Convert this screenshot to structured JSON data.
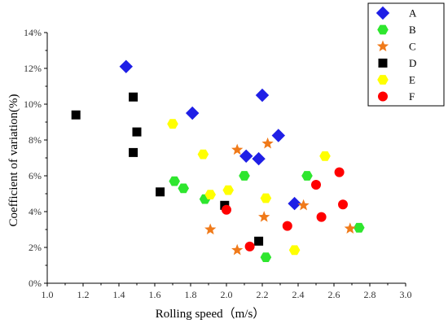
{
  "chart_data": {
    "type": "scatter",
    "xlabel": "Rolling speed（m/s）",
    "ylabel": "Coefficient of variation(%)",
    "xlim": [
      1.0,
      3.0
    ],
    "ylim": [
      0,
      14
    ],
    "x_ticks": [
      "1.0",
      "1.2",
      "1.4",
      "1.6",
      "1.8",
      "2.0",
      "2.2",
      "2.4",
      "2.6",
      "2.8",
      "3.0"
    ],
    "y_ticks": [
      "0%",
      "2%",
      "4%",
      "6%",
      "8%",
      "10%",
      "12%",
      "14%"
    ],
    "grid": false,
    "legend_position": "top-right",
    "series": [
      {
        "name": "A",
        "marker": "diamond",
        "color": "#1f1fe6",
        "points": [
          [
            1.44,
            12.1
          ],
          [
            1.81,
            9.5
          ],
          [
            2.2,
            10.5
          ],
          [
            2.11,
            7.1
          ],
          [
            2.18,
            6.95
          ],
          [
            2.29,
            8.25
          ],
          [
            2.38,
            4.45
          ]
        ]
      },
      {
        "name": "B",
        "marker": "hexagon",
        "color": "#2ee62e",
        "points": [
          [
            1.71,
            5.7
          ],
          [
            1.76,
            5.3
          ],
          [
            1.88,
            4.7
          ],
          [
            2.1,
            6.0
          ],
          [
            2.22,
            1.45
          ],
          [
            2.45,
            6.0
          ],
          [
            2.74,
            3.1
          ]
        ]
      },
      {
        "name": "C",
        "marker": "star",
        "color": "#f07a1a",
        "points": [
          [
            1.91,
            3.0
          ],
          [
            2.06,
            1.85
          ],
          [
            2.06,
            7.45
          ],
          [
            2.23,
            7.8
          ],
          [
            2.21,
            3.7
          ],
          [
            2.43,
            4.35
          ],
          [
            2.69,
            3.05
          ]
        ]
      },
      {
        "name": "D",
        "marker": "square",
        "color": "#000000",
        "points": [
          [
            1.16,
            9.4
          ],
          [
            1.48,
            10.4
          ],
          [
            1.5,
            8.45
          ],
          [
            1.48,
            7.3
          ],
          [
            1.63,
            5.1
          ],
          [
            1.99,
            4.35
          ],
          [
            2.18,
            2.35
          ]
        ]
      },
      {
        "name": "E",
        "marker": "hexagon",
        "color": "#ffff00",
        "points": [
          [
            1.7,
            8.9
          ],
          [
            1.87,
            7.2
          ],
          [
            1.91,
            4.95
          ],
          [
            2.01,
            5.2
          ],
          [
            2.22,
            4.75
          ],
          [
            2.38,
            1.85
          ],
          [
            2.55,
            7.1
          ]
        ]
      },
      {
        "name": "F",
        "marker": "circle",
        "color": "#ff0000",
        "points": [
          [
            2.0,
            4.1
          ],
          [
            2.13,
            2.05
          ],
          [
            2.34,
            3.2
          ],
          [
            2.5,
            5.5
          ],
          [
            2.53,
            3.7
          ],
          [
            2.63,
            6.2
          ],
          [
            2.65,
            4.4
          ]
        ]
      }
    ]
  }
}
